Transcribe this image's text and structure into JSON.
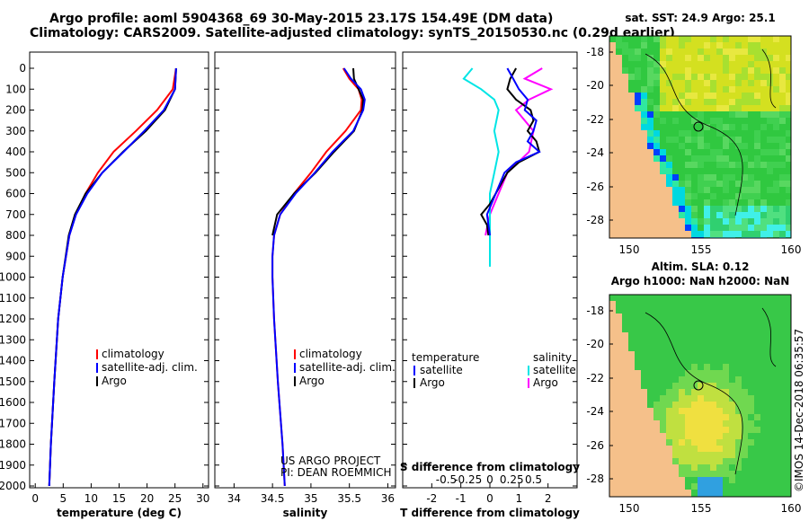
{
  "title_line1": "Argo profile: aoml 5904368_69 30-May-2015 23.17S 154.49E (DM data)",
  "title_line2": "Climatology: CARS2009. Satellite-adjusted climatology: synTS_20150530.nc (0.29d earlier)",
  "sst_title": "sat. SST: 24.9 Argo: 25.1",
  "sla_title1": "Altim. SLA: 0.12",
  "sla_title2": "Argo h1000: NaN h2000: NaN",
  "credit": "©IMOS 14-Dec-2018 06:35:57",
  "project_line1": "US ARGO PROJECT",
  "project_line2": "PI: DEAN ROEMMICH",
  "colors": {
    "clim": "#ff0000",
    "sat": "#0000ff",
    "argo": "#000000",
    "sat_s": "#00e5e5",
    "argo_s": "#ff00ff",
    "land": "#f5c08a"
  },
  "chart_data": [
    {
      "type": "line",
      "xlabel": "temperature (deg C)",
      "ylabel": "",
      "xlim": [
        -1,
        31
      ],
      "ylim": [
        0,
        2050
      ],
      "xticks": [
        "0",
        "5",
        "10",
        "15",
        "20",
        "25",
        "30"
      ],
      "yticks": [
        "0",
        "100",
        "200",
        "300",
        "400",
        "500",
        "600",
        "700",
        "800",
        "900",
        "1000",
        "1100",
        "1200",
        "1300",
        "1400",
        "1500",
        "1600",
        "1700",
        "1800",
        "1900",
        "2000"
      ],
      "legend": [
        "climatology",
        "satellite-adj. clim.",
        "Argo"
      ],
      "series": [
        {
          "name": "climatology",
          "depth": [
            0,
            100,
            200,
            300,
            400,
            500,
            600,
            700,
            800,
            1000,
            1200,
            1500,
            1800,
            2000
          ],
          "values": [
            25.2,
            24.6,
            21.8,
            18.0,
            14.0,
            11.2,
            9.0,
            7.2,
            6.1,
            4.9,
            4.1,
            3.4,
            2.8,
            2.5
          ]
        },
        {
          "name": "satellite-adj. clim.",
          "depth": [
            0,
            100,
            200,
            300,
            400,
            500,
            600,
            700,
            800,
            1000,
            1200,
            1500,
            1800,
            2000
          ],
          "values": [
            25.2,
            25.0,
            23.0,
            19.5,
            15.8,
            12.0,
            9.3,
            7.3,
            6.1,
            4.9,
            4.1,
            3.4,
            2.8,
            2.5
          ]
        },
        {
          "name": "Argo",
          "depth": [
            0,
            100,
            200,
            300,
            400,
            500,
            600,
            700,
            800,
            1000,
            1200,
            1500,
            1800,
            2000
          ],
          "values": [
            25.2,
            25.0,
            23.2,
            19.8,
            15.7,
            12.0,
            9.0,
            7.1,
            6.0,
            4.9,
            4.1,
            3.4,
            2.8,
            2.5
          ]
        }
      ]
    },
    {
      "type": "line",
      "xlabel": "salinity",
      "xlim": [
        33.75,
        36.1
      ],
      "ylim": [
        0,
        2050
      ],
      "xticks": [
        "34",
        "34.5",
        "35",
        "35.5",
        "36"
      ],
      "legend": [
        "climatology",
        "satellite-adj. clim.",
        "Argo"
      ],
      "series": [
        {
          "name": "climatology",
          "depth": [
            0,
            50,
            100,
            150,
            200,
            300,
            400,
            500,
            600,
            700,
            800,
            900,
            1000,
            1200,
            1500,
            1800,
            2000
          ],
          "values": [
            35.42,
            35.5,
            35.62,
            35.66,
            35.65,
            35.45,
            35.2,
            35.0,
            34.78,
            34.6,
            34.52,
            34.5,
            34.5,
            34.52,
            34.57,
            34.63,
            34.66
          ]
        },
        {
          "name": "satellite-adj. clim.",
          "depth": [
            0,
            50,
            100,
            150,
            200,
            300,
            400,
            500,
            600,
            700,
            800,
            900,
            1000,
            1200,
            1500,
            1800,
            2000
          ],
          "values": [
            35.43,
            35.52,
            35.65,
            35.7,
            35.68,
            35.55,
            35.28,
            35.05,
            34.8,
            34.6,
            34.52,
            34.5,
            34.5,
            34.52,
            34.57,
            34.63,
            34.66
          ]
        },
        {
          "name": "Argo",
          "depth": [
            0,
            50,
            100,
            150,
            200,
            300,
            400,
            500,
            600,
            700,
            800
          ],
          "values": [
            35.55,
            35.56,
            35.62,
            35.68,
            35.67,
            35.56,
            35.3,
            35.06,
            34.78,
            34.56,
            34.5
          ]
        }
      ]
    },
    {
      "type": "line",
      "xlabel": "T difference from climatology",
      "xlabel2": "S difference from climatology",
      "xlim": [
        -3,
        3
      ],
      "ylim": [
        0,
        2050
      ],
      "xticks": [
        "-2",
        "-1",
        "0",
        "1",
        "2"
      ],
      "xticks2": [
        "-0.5",
        "-0.25",
        "0",
        "0.25",
        "0.5"
      ],
      "legend_temp_title": "temperature",
      "legend_sal_title": "salinity",
      "legend_temp": [
        "satellite",
        "Argo"
      ],
      "legend_sal": [
        "satellite",
        "Argo"
      ],
      "series": [
        {
          "name": "satellite",
          "depth": [
            0,
            50,
            100,
            150,
            200,
            250,
            300,
            350,
            400,
            450,
            500,
            600,
            700,
            800
          ],
          "values": [
            0.6,
            0.8,
            1.0,
            1.3,
            1.2,
            1.6,
            1.5,
            1.3,
            1.7,
            0.9,
            0.5,
            0.2,
            -0.1,
            0
          ]
        },
        {
          "name": "Argo",
          "depth": [
            0,
            50,
            100,
            150,
            200,
            250,
            300,
            350,
            400,
            450,
            500,
            550,
            600,
            650,
            700,
            750,
            800
          ],
          "values": [
            0.9,
            0.7,
            0.6,
            0.9,
            1.4,
            1.5,
            1.3,
            1.6,
            1.7,
            1.0,
            0.6,
            0.4,
            0.2,
            0.0,
            -0.3,
            -0.1,
            -0.05
          ]
        },
        {
          "name": "satellite S",
          "depth": [
            0,
            50,
            100,
            150,
            200,
            300,
            400,
            500,
            600,
            700,
            800,
            900,
            950
          ],
          "values": [
            -0.2,
            -0.3,
            -0.1,
            0.05,
            0.1,
            0.05,
            0.1,
            0.05,
            0.0,
            0.0,
            0.0,
            0.0,
            0.0
          ]
        },
        {
          "name": "Argo S",
          "depth": [
            0,
            50,
            100,
            150,
            200,
            300,
            400,
            500,
            600,
            700,
            800
          ],
          "values": [
            0.6,
            0.4,
            0.7,
            0.45,
            0.3,
            0.5,
            0.45,
            0.2,
            0.1,
            0.0,
            -0.05
          ]
        }
      ]
    },
    {
      "type": "heatmap",
      "title": "sat. SST: 24.9 Argo: 25.1",
      "xticks": [
        "150",
        "155",
        "160"
      ],
      "yticks": [
        "-18",
        "-20",
        "-22",
        "-24",
        "-26",
        "-28"
      ]
    },
    {
      "type": "heatmap",
      "title": "Altim. SLA: 0.12",
      "xticks": [
        "150",
        "155",
        "160"
      ],
      "yticks": [
        "-18",
        "-20",
        "-22",
        "-24",
        "-26",
        "-28"
      ]
    }
  ]
}
